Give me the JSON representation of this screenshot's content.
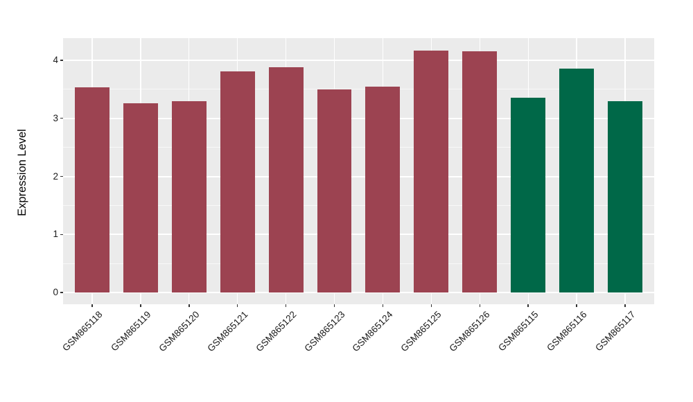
{
  "figure": {
    "background": "#ffffff",
    "panel_background": "#ebebeb",
    "grid_major_color": "#ffffff",
    "grid_minor_color": "rgba(255,255,255,0.65)",
    "tick_color": "#333333",
    "tick_label_color": "#1a1a1a"
  },
  "chart_data": {
    "type": "bar",
    "title": "",
    "xlabel": "",
    "ylabel": "Expression Level",
    "categories": [
      "GSM865118",
      "GSM865119",
      "GSM865120",
      "GSM865121",
      "GSM865122",
      "GSM865123",
      "GSM865124",
      "GSM865125",
      "GSM865126",
      "GSM865115",
      "GSM865116",
      "GSM865117"
    ],
    "values": [
      3.53,
      3.26,
      3.29,
      3.81,
      3.88,
      3.5,
      3.54,
      4.16,
      4.15,
      3.36,
      3.86,
      3.29
    ],
    "bar_colors": [
      "#9c4351",
      "#9c4351",
      "#9c4351",
      "#9c4351",
      "#9c4351",
      "#9c4351",
      "#9c4351",
      "#9c4351",
      "#9c4351",
      "#006848",
      "#006848",
      "#006848"
    ],
    "color_groups": [
      {
        "color": "#9c4351",
        "categories": [
          "GSM865118",
          "GSM865119",
          "GSM865120",
          "GSM865121",
          "GSM865122",
          "GSM865123",
          "GSM865124",
          "GSM865125",
          "GSM865126"
        ]
      },
      {
        "color": "#006848",
        "categories": [
          "GSM865115",
          "GSM865116",
          "GSM865117"
        ]
      }
    ],
    "y_ticks": [
      0,
      1,
      2,
      3,
      4
    ],
    "y_tick_labels": [
      "0",
      "1",
      "2",
      "3",
      "4"
    ],
    "y_minor_ticks": [
      0.5,
      1.5,
      2.5,
      3.5
    ],
    "ylim": [
      -0.2,
      4.38
    ],
    "grid": true,
    "legend_position": "none",
    "x_tick_rotation": 45
  }
}
